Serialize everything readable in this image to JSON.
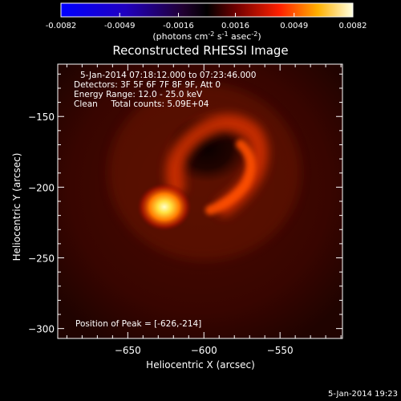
{
  "colorbar": {
    "ticks": [
      "-0.0082",
      "-0.0049",
      "-0.0016",
      "0.0016",
      "0.0049",
      "0.0082"
    ],
    "units_main": "(photons cm",
    "units_sup1": "-2",
    "units_mid": " s",
    "units_sup2": "-1",
    "units_tail": " asec",
    "units_sup3": "-2",
    "units_end": ")"
  },
  "chart_data": {
    "type": "heatmap",
    "title": "Reconstructed RHESSI Image",
    "xlabel": "Heliocentric X (arcsec)",
    "ylabel": "Heliocentric Y (arcsec)",
    "xlim": [
      -696,
      -509
    ],
    "ylim": [
      -307,
      -113
    ],
    "x_ticks": [
      -650,
      -600,
      -550
    ],
    "y_ticks": [
      -150,
      -200,
      -250,
      -300
    ],
    "info_lines": [
      "5-Jan-2014 07:18:12.000 to 07:23:46.000",
      "Detectors: 3F 5F 6F 7F 8F 9F, Att 0",
      "Energy Range: 12.0 - 25.0 keV",
      "Clean     Total counts: 5.09E+04"
    ],
    "peak_label": "Position of Peak = [-626,-214]",
    "peak": [
      -626,
      -214
    ],
    "colorbar_range": [
      -0.0082,
      0.0082
    ],
    "colors": {
      "negative": "#0000ff",
      "zero": "#000000",
      "positive_mid": "#ff2000",
      "positive_high": "#ffff40"
    }
  },
  "footer": {
    "timestamp": "5-Jan-2014 19:23"
  }
}
